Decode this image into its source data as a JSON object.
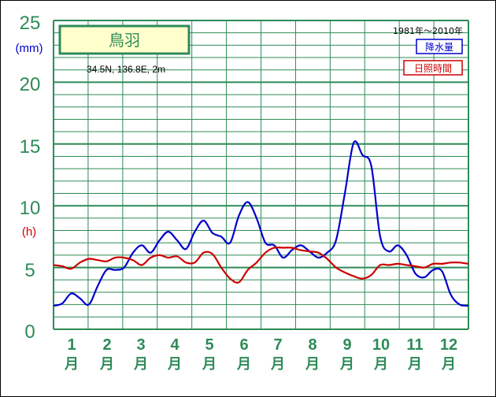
{
  "chart_data": {
    "type": "line",
    "station": "鳥羽",
    "location": "34.5N,  136.8E,  2m",
    "period": "1981年〜2010年",
    "y_unit_left": "(mm)",
    "y_unit_right": "(h)",
    "yticks": [
      "0",
      "5",
      "10",
      "15",
      "20",
      "25"
    ],
    "ylim": [
      0,
      25
    ],
    "month_numbers": [
      "1",
      "2",
      "3",
      "4",
      "5",
      "6",
      "7",
      "8",
      "9",
      "10",
      "11",
      "12"
    ],
    "month_suffix": "月",
    "legend": [
      "降水量",
      "日照時間"
    ],
    "series": [
      {
        "name": "降水量",
        "color": "#0000cc",
        "values": [
          1.9,
          2.1,
          2.9,
          2.5,
          2.0,
          3.5,
          4.8,
          4.8,
          5.0,
          6.2,
          6.8,
          6.2,
          7.2,
          7.9,
          7.2,
          6.5,
          7.9,
          8.8,
          7.8,
          7.5,
          7.0,
          9.2,
          10.3,
          9.0,
          7.0,
          6.8,
          5.8,
          6.4,
          6.8,
          6.3,
          5.8,
          6.2,
          7.2,
          11.0,
          15.1,
          14.1,
          13.2,
          7.5,
          6.3,
          6.8,
          6.0,
          4.5,
          4.2,
          4.8,
          4.7,
          2.8,
          2.0,
          1.9
        ]
      },
      {
        "name": "日照時間",
        "color": "#cc0000",
        "values": [
          5.2,
          5.1,
          4.9,
          5.4,
          5.7,
          5.6,
          5.5,
          5.8,
          5.8,
          5.6,
          5.2,
          5.8,
          6.0,
          5.8,
          5.9,
          5.4,
          5.4,
          6.2,
          6.1,
          5.0,
          4.1,
          3.8,
          4.8,
          5.4,
          6.2,
          6.6,
          6.6,
          6.6,
          6.4,
          6.3,
          6.2,
          5.7,
          5.0,
          4.6,
          4.3,
          4.1,
          4.4,
          5.2,
          5.2,
          5.3,
          5.2,
          5.1,
          5.0,
          5.3,
          5.3,
          5.4,
          5.4,
          5.3
        ]
      }
    ]
  }
}
